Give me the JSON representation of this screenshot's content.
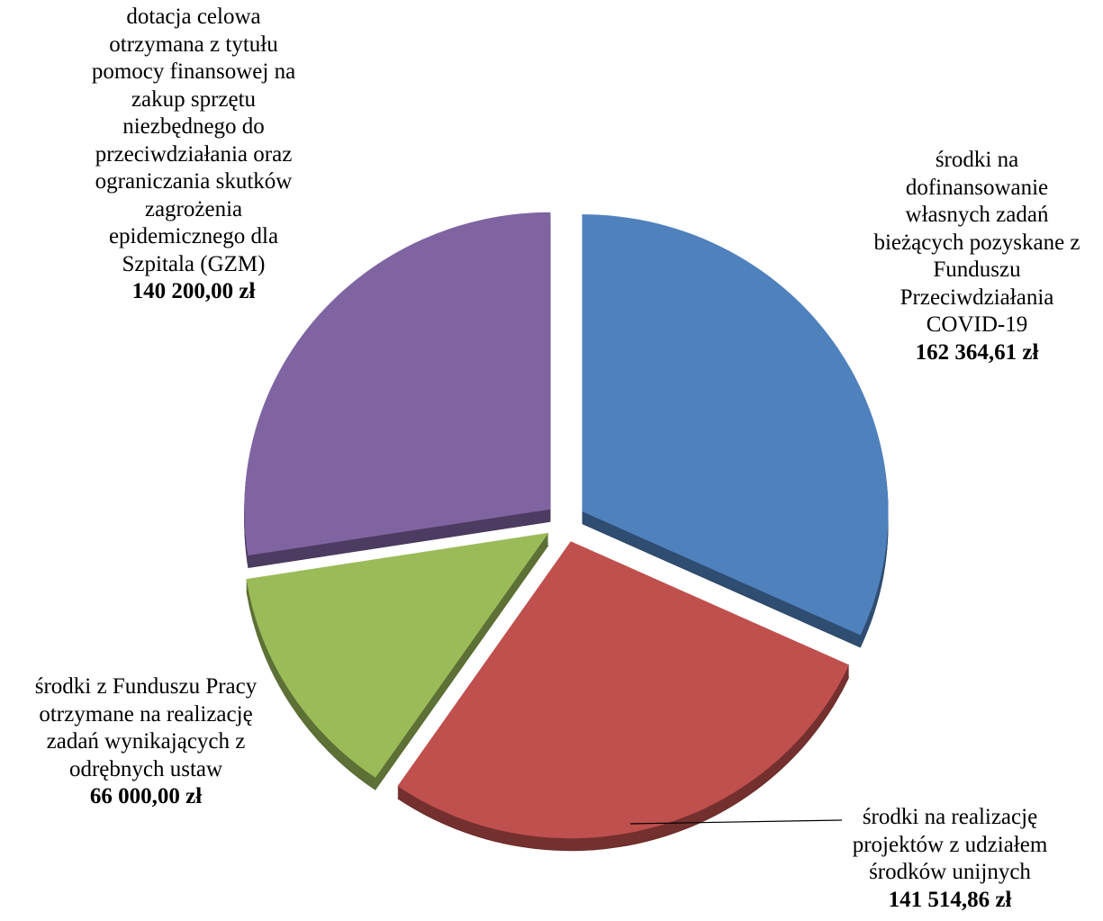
{
  "chart_data": {
    "type": "pie",
    "categories": [
      "środki na\ndofinansowanie\nwłasnych zadań\nbieżących pozyskane z\nFunduszu\nPrzeciwdziałania\nCOVID-19",
      "środki na realizację\nprojektów z udziałem\nśrodków unijnych",
      "środki z Funduszu Pracy\notrzymane na realizację\nzadań wynikających z\nodrębnych ustaw",
      "dotacja celowa\notrzymana z tytułu\npomocy finansowej na\nzakup sprzętu\nniezbędnego do\nprzeciwdziałania oraz\nograniczania skutków\nzagrożenia\nepidemicznego dla\nSzpitala (GZM)"
    ],
    "values": [
      162364.61,
      141514.86,
      66000.0,
      140200.0
    ],
    "value_labels": [
      "162 364,61 zł",
      "141 514,86 zł",
      "66 000,00 zł",
      "140 200,00 zł"
    ],
    "colors": [
      "#4f81bd",
      "#c0504d",
      "#9bbb59",
      "#8064a2"
    ]
  }
}
